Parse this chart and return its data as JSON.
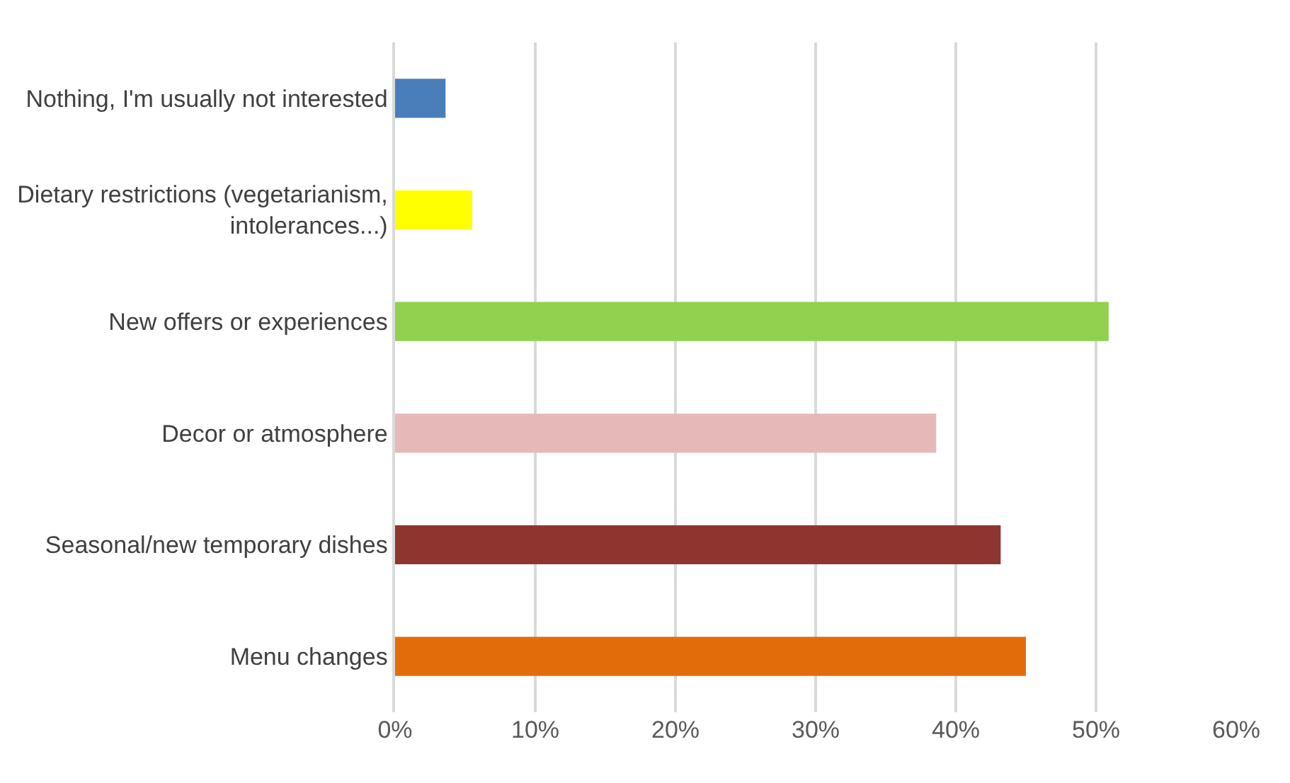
{
  "chart_data": {
    "type": "bar",
    "orientation": "horizontal",
    "categories": [
      "Nothing, I'm usually not interested",
      "Dietary restrictions (vegetarianism,\nintolerances...)",
      "New offers or experiences",
      "Decor or atmosphere",
      "Seasonal/new temporary dishes",
      "Menu changes"
    ],
    "values": [
      3.6,
      5.5,
      50.9,
      38.6,
      43.2,
      45.0
    ],
    "colors": [
      "#4a7ebb",
      "#ffff00",
      "#92d050",
      "#e6b9b8",
      "#8e3530",
      "#e36c0a"
    ],
    "xlim": [
      0,
      60
    ],
    "xticks": [
      {
        "value": 0,
        "label": "0%"
      },
      {
        "value": 10,
        "label": "10%"
      },
      {
        "value": 20,
        "label": "20%"
      },
      {
        "value": 30,
        "label": "30%"
      },
      {
        "value": 40,
        "label": "40%"
      },
      {
        "value": 50,
        "label": "50%"
      },
      {
        "value": 60,
        "label": "60%"
      }
    ],
    "grid": "x"
  }
}
